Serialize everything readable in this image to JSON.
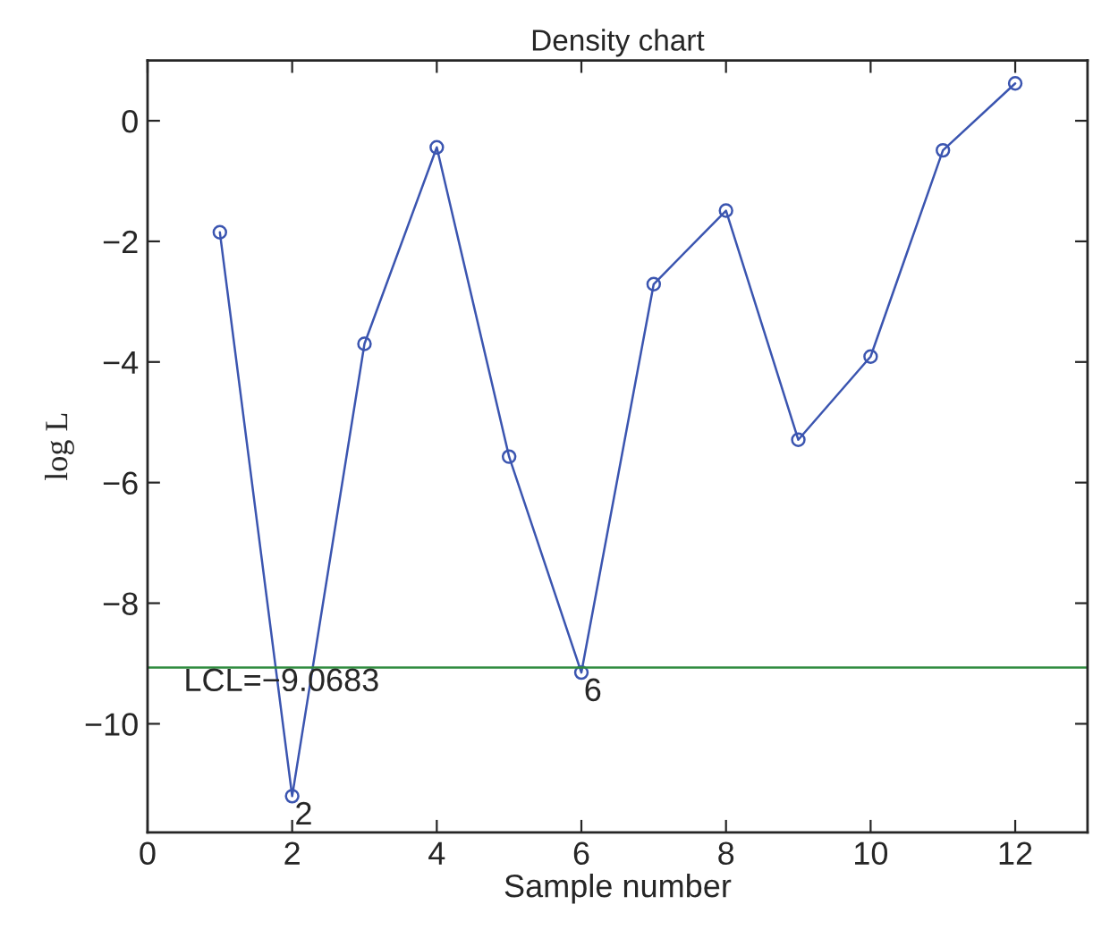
{
  "chart_data": {
    "type": "line",
    "title": "Density chart",
    "xlabel": "Sample number",
    "ylabel": "log L",
    "x": [
      1,
      2,
      3,
      4,
      5,
      6,
      7,
      8,
      9,
      10,
      11,
      12
    ],
    "series": [
      {
        "color": "#3b55b0",
        "values": [
          -1.85,
          -11.2,
          -3.7,
          -0.44,
          -5.57,
          -9.15,
          -2.71,
          -1.49,
          -5.29,
          -3.91,
          -0.49,
          0.62
        ]
      }
    ],
    "marker": "circle",
    "line_style": "solid",
    "grid": false,
    "xlim": [
      0,
      13
    ],
    "ylim": [
      -11.8,
      1
    ],
    "xticks": [
      0,
      2,
      4,
      6,
      8,
      10,
      12
    ],
    "yticks": [
      {
        "value": -10,
        "label": "−10"
      },
      {
        "value": -8,
        "label": "−8"
      },
      {
        "value": -6,
        "label": "−6"
      },
      {
        "value": -4,
        "label": "−4"
      },
      {
        "value": -2,
        "label": "−2"
      },
      0
    ],
    "ref_lines": [
      {
        "axis": "y",
        "value": -9.0683,
        "label": "LCL=−9.0683",
        "color": "#2e8b3e",
        "line_style": "solid"
      }
    ],
    "annotations": [
      {
        "text": "2",
        "x": 2,
        "y": -11.2
      },
      {
        "text": "6",
        "x": 6,
        "y": -9.15
      }
    ]
  }
}
